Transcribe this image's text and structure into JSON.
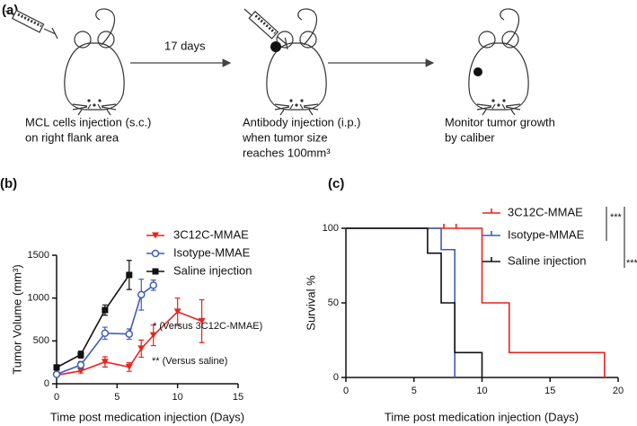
{
  "panel_a": {
    "label": "(a)",
    "interval": "17 days",
    "steps": [
      {
        "lines": [
          "MCL cells injection (s.c.)",
          "on right flank area"
        ]
      },
      {
        "lines": [
          "Antibody injection (i.p.)",
          "when tumor size",
          "reaches 100mm³"
        ]
      },
      {
        "lines": [
          "Monitor tumor growth",
          "by caliber"
        ]
      }
    ]
  },
  "chart_data": [
    {
      "type": "line",
      "panel_label": "(b)",
      "x_label": "Time post medication injection (Days)",
      "y_label": "Tumor Volume (mm³)",
      "xlim": [
        0,
        15
      ],
      "xticks": [
        0,
        5,
        10,
        15
      ],
      "ylim": [
        0,
        1500
      ],
      "yticks": [
        0,
        500,
        1000,
        1500
      ],
      "annotations": [
        "* (Versus 3C12C-MMAE)",
        "** (Versus saline)"
      ],
      "series": [
        {
          "name": "3C12C-MMAE",
          "color": "#e8231d",
          "marker": "triangle-down",
          "x": [
            0,
            2,
            4,
            6,
            7,
            8,
            10,
            12
          ],
          "values": [
            100,
            150,
            255,
            195,
            410,
            565,
            840,
            730
          ],
          "errors": [
            15,
            25,
            60,
            50,
            100,
            120,
            160,
            250
          ]
        },
        {
          "name": "Isotype-MMAE",
          "color": "#3f5cb8",
          "marker": "circle-open",
          "x": [
            0,
            2,
            4,
            6,
            7,
            8
          ],
          "values": [
            110,
            220,
            590,
            580,
            1040,
            1150
          ],
          "errors": [
            20,
            40,
            70,
            60,
            180,
            60
          ]
        },
        {
          "name": "Saline injection",
          "color": "#111111",
          "marker": "square",
          "x": [
            0,
            2,
            4,
            6
          ],
          "values": [
            190,
            340,
            860,
            1270
          ],
          "errors": [
            30,
            40,
            60,
            170
          ]
        }
      ]
    },
    {
      "type": "step",
      "panel_label": "(c)",
      "x_label": "Time post medication injection (Days)",
      "y_label": "Survival %",
      "xlim": [
        0,
        20
      ],
      "xticks": [
        0,
        5,
        10,
        15,
        20
      ],
      "ylim": [
        0,
        100
      ],
      "yticks": [
        0,
        50,
        100
      ],
      "significance": [
        "***",
        "***"
      ],
      "series": [
        {
          "name": "3C12C-MMAE",
          "color": "#e8231d",
          "x": [
            0,
            10,
            12,
            19
          ],
          "values": [
            100,
            50,
            16.7,
            0
          ],
          "censored": [
            7.2,
            8.1
          ]
        },
        {
          "name": "Isotype-MMAE",
          "color": "#3f5cb8",
          "x": [
            0,
            7,
            8
          ],
          "values": [
            100,
            85.7,
            0
          ]
        },
        {
          "name": "Saline injection",
          "color": "#111111",
          "x": [
            0,
            6,
            7,
            8,
            10
          ],
          "values": [
            100,
            83.3,
            50,
            16.7,
            0
          ]
        }
      ]
    }
  ]
}
